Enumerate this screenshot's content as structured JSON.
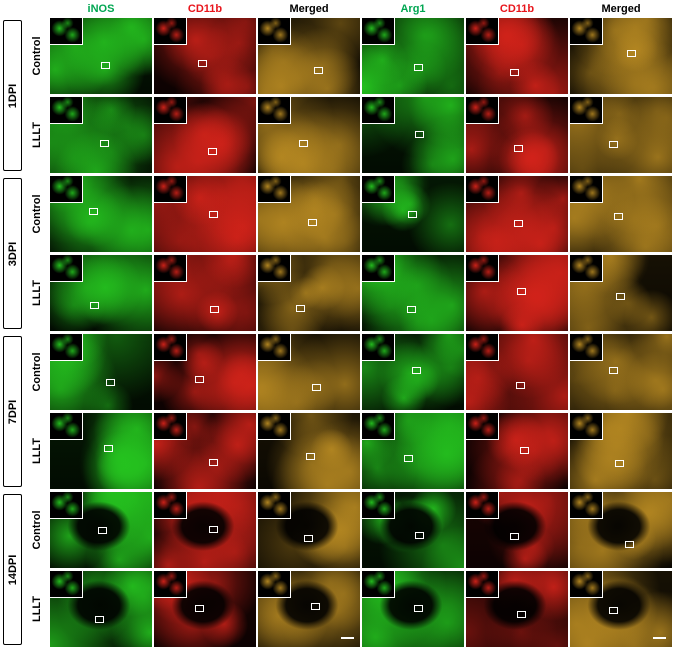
{
  "columns": [
    {
      "label": "iNOS",
      "color": "#00a651",
      "channel": "green"
    },
    {
      "label": "CD11b",
      "color": "#e8141b",
      "channel": "red"
    },
    {
      "label": "Merged",
      "color": "#000000",
      "channel": "merged"
    },
    {
      "label": "Arg1",
      "color": "#00a651",
      "channel": "green"
    },
    {
      "label": "CD11b",
      "color": "#e8141b",
      "channel": "red"
    },
    {
      "label": "Merged",
      "color": "#000000",
      "channel": "merged"
    }
  ],
  "groups": [
    {
      "label": "1DPI",
      "rows": [
        {
          "label": "Control"
        },
        {
          "label": "LLLT"
        }
      ]
    },
    {
      "label": "3DPI",
      "rows": [
        {
          "label": "Control"
        },
        {
          "label": "LLLT"
        }
      ]
    },
    {
      "label": "7DPI",
      "rows": [
        {
          "label": "Control"
        },
        {
          "label": "LLLT"
        }
      ]
    },
    {
      "label": "14DPI",
      "rows": [
        {
          "label": "Control"
        },
        {
          "label": "LLLT"
        }
      ]
    }
  ],
  "channel_colors": {
    "green": "#25c41f",
    "red": "#d4231a",
    "merged": "#b88a22",
    "background": "#000000",
    "frame": "#ffffff"
  }
}
